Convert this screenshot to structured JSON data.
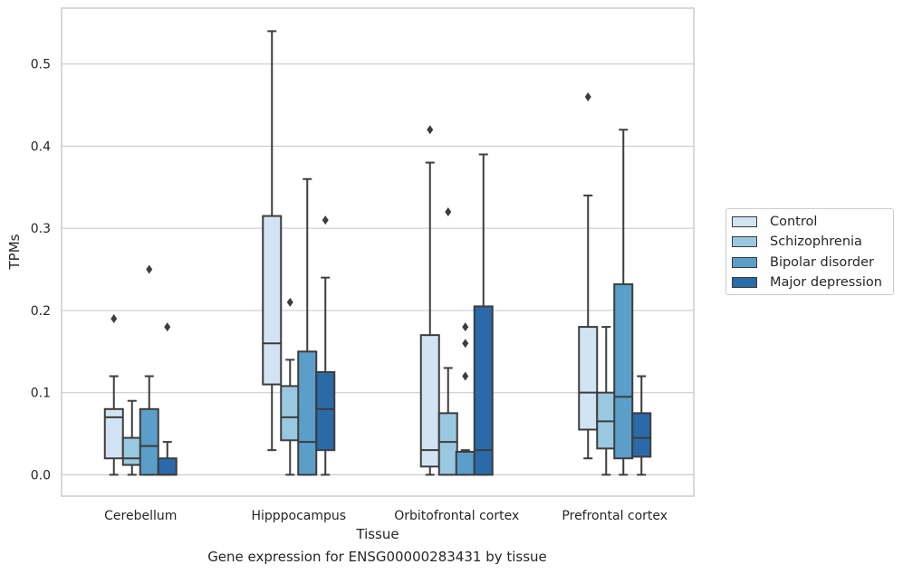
{
  "chart_data": {
    "type": "boxplot",
    "xlabel": "Tissue",
    "ylabel": "TPMs",
    "caption": "Gene expression for ENSG00000283431 by tissue",
    "ylim": [
      -0.026,
      0.568
    ],
    "yticks": [
      0.0,
      0.1,
      0.2,
      0.3,
      0.4,
      0.5
    ],
    "ytick_labels": [
      "0.0",
      "0.1",
      "0.2",
      "0.3",
      "0.4",
      "0.5"
    ],
    "grid": true,
    "legend_position": "right",
    "categories": [
      "Cerebellum",
      "Hipppocampus",
      "Orbitofrontal cortex",
      "Prefrontal cortex"
    ],
    "series": [
      {
        "name": "Control",
        "color": "#d2e3f3",
        "boxes": [
          {
            "min": 0.0,
            "q1": 0.02,
            "median": 0.07,
            "q3": 0.08,
            "max": 0.12,
            "outliers": [
              0.19
            ]
          },
          {
            "min": 0.03,
            "q1": 0.11,
            "median": 0.16,
            "q3": 0.315,
            "max": 0.54,
            "outliers": []
          },
          {
            "min": 0.0,
            "q1": 0.01,
            "median": 0.03,
            "q3": 0.17,
            "max": 0.38,
            "outliers": [
              0.42
            ]
          },
          {
            "min": 0.02,
            "q1": 0.055,
            "median": 0.1,
            "q3": 0.18,
            "max": 0.34,
            "outliers": [
              0.46
            ]
          }
        ]
      },
      {
        "name": "Schizophrenia",
        "color": "#9ac8e0",
        "boxes": [
          {
            "min": 0.0,
            "q1": 0.012,
            "median": 0.02,
            "q3": 0.045,
            "max": 0.09,
            "outliers": []
          },
          {
            "min": 0.0,
            "q1": 0.042,
            "median": 0.07,
            "q3": 0.108,
            "max": 0.14,
            "outliers": [
              0.21
            ]
          },
          {
            "min": 0.0,
            "q1": 0.0,
            "median": 0.04,
            "q3": 0.075,
            "max": 0.13,
            "outliers": [
              0.32
            ]
          },
          {
            "min": 0.0,
            "q1": 0.032,
            "median": 0.065,
            "q3": 0.1,
            "max": 0.18,
            "outliers": []
          }
        ]
      },
      {
        "name": "Bipolar disorder",
        "color": "#5a9ec9",
        "boxes": [
          {
            "min": 0.0,
            "q1": 0.0,
            "median": 0.035,
            "q3": 0.08,
            "max": 0.12,
            "outliers": [
              0.25
            ]
          },
          {
            "min": 0.0,
            "q1": 0.0,
            "median": 0.04,
            "q3": 0.15,
            "max": 0.36,
            "outliers": []
          },
          {
            "min": 0.0,
            "q1": 0.0,
            "median": 0.028,
            "q3": 0.028,
            "max": 0.03,
            "outliers": [
              0.12,
              0.16,
              0.18
            ]
          },
          {
            "min": 0.0,
            "q1": 0.02,
            "median": 0.095,
            "q3": 0.232,
            "max": 0.42,
            "outliers": []
          }
        ]
      },
      {
        "name": "Major depression",
        "color": "#2b6aa8",
        "boxes": [
          {
            "min": 0.0,
            "q1": 0.0,
            "median": 0.0,
            "q3": 0.02,
            "max": 0.04,
            "outliers": [
              0.18
            ]
          },
          {
            "min": 0.0,
            "q1": 0.03,
            "median": 0.08,
            "q3": 0.125,
            "max": 0.24,
            "outliers": [
              0.31
            ]
          },
          {
            "min": 0.0,
            "q1": 0.0,
            "median": 0.03,
            "q3": 0.205,
            "max": 0.39,
            "outliers": []
          },
          {
            "min": 0.0,
            "q1": 0.022,
            "median": 0.045,
            "q3": 0.075,
            "max": 0.12,
            "outliers": []
          }
        ]
      }
    ]
  }
}
